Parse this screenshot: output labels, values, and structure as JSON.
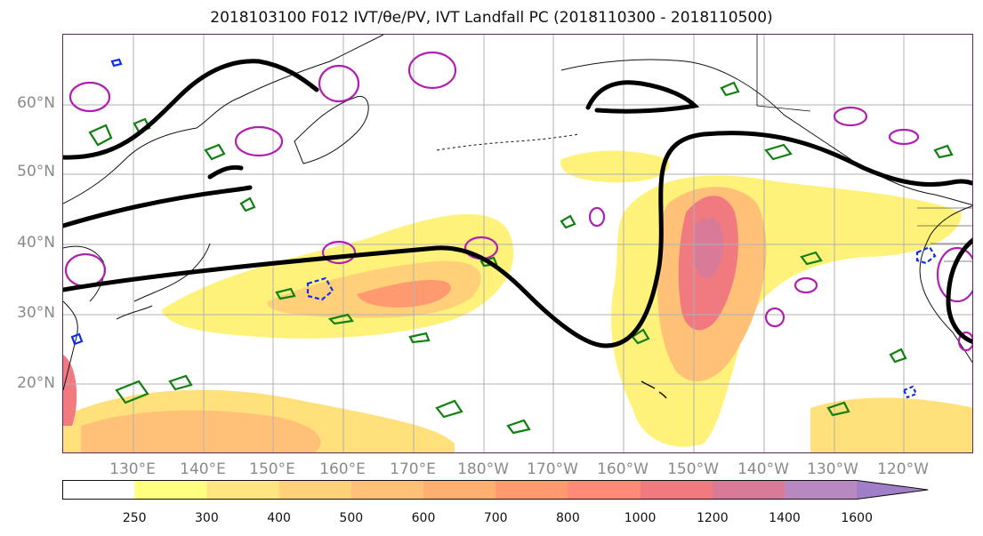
{
  "title": "2018103100 F012 IVT/θe/PV, IVT Landfall PC (2018110300 - 2018110500)",
  "map": {
    "lat_labels": [
      "60°N",
      "50°N",
      "40°N",
      "30°N",
      "20°N"
    ],
    "lon_labels": [
      "130°E",
      "140°E",
      "150°E",
      "160°E",
      "170°E",
      "180°W",
      "170°W",
      "160°W",
      "150°W",
      "140°W",
      "130°W",
      "120°W"
    ],
    "colors": {
      "coast": "#111111",
      "theta_e": "#000000",
      "pv_magenta": "#b020b0",
      "pv_green": "#108010",
      "pv_blue": "#1030e0",
      "grid": "#b0b0b0"
    }
  },
  "colorbar": {
    "ticks": [
      "250",
      "300",
      "400",
      "500",
      "600",
      "700",
      "800",
      "1000",
      "1200",
      "1400",
      "1600"
    ],
    "colors": [
      "#ffffff",
      "#ffff80",
      "#ffe680",
      "#ffd27a",
      "#ffc078",
      "#ffb070",
      "#ff9a70",
      "#ff8a78",
      "#f07a80",
      "#d87a98",
      "#b888c0",
      "#a07ec8"
    ]
  }
}
